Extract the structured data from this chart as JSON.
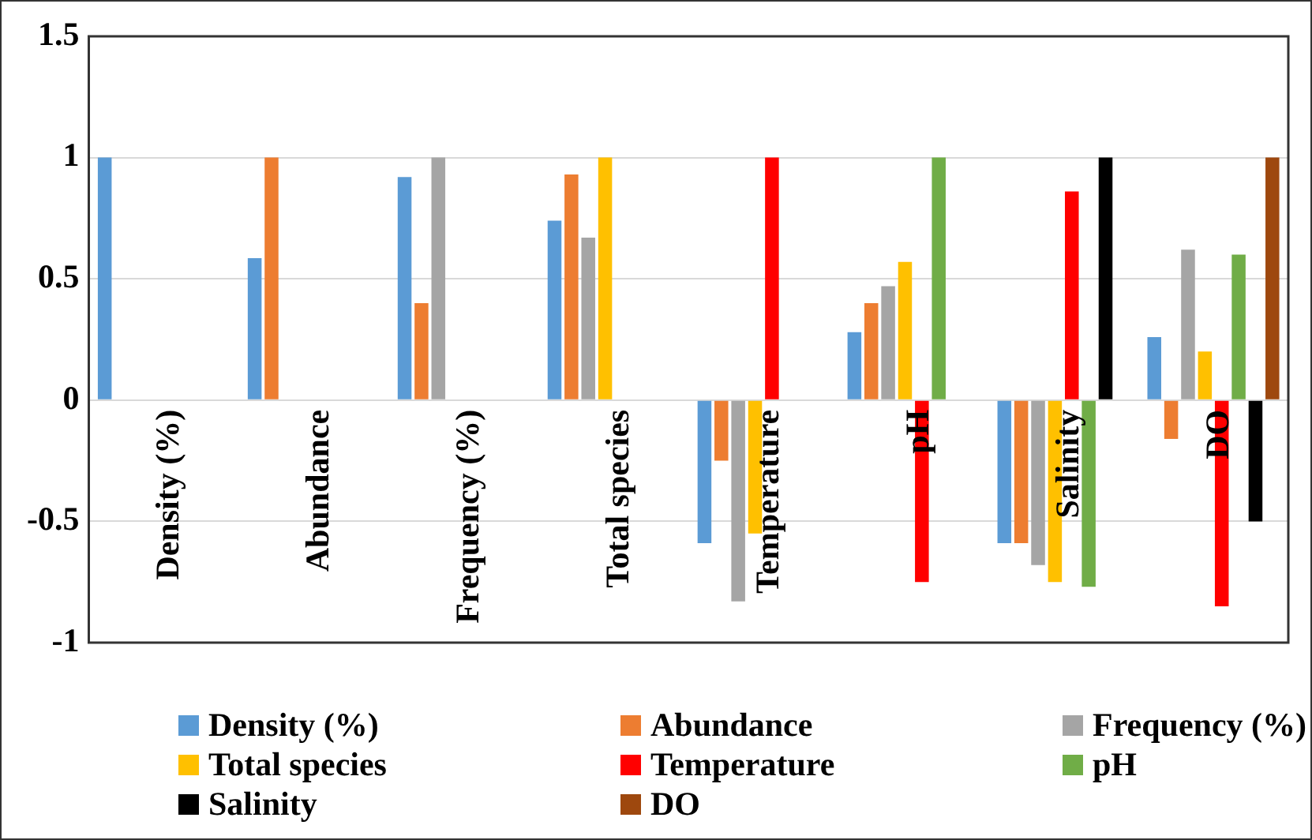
{
  "chart_data": {
    "type": "bar",
    "categories": [
      "Density (%)",
      "Abundance",
      "Frequency (%)",
      "Total species",
      "Temperature",
      "pH",
      "Salinity",
      "DO"
    ],
    "series": [
      {
        "name": "Density (%)",
        "color": "#5b9bd5",
        "values": [
          1,
          0.585,
          0.92,
          0.74,
          -0.59,
          0.28,
          -0.59,
          0.26
        ]
      },
      {
        "name": "Abundance",
        "color": "#ed7d31",
        "values": [
          null,
          1,
          0.4,
          0.93,
          -0.25,
          0.4,
          -0.59,
          -0.16
        ]
      },
      {
        "name": "Frequency (%)",
        "color": "#a5a5a5",
        "values": [
          null,
          null,
          1,
          0.67,
          -0.83,
          0.47,
          -0.68,
          0.62
        ]
      },
      {
        "name": "Total species",
        "color": "#ffc000",
        "values": [
          null,
          null,
          null,
          1,
          -0.55,
          0.57,
          -0.75,
          0.2
        ]
      },
      {
        "name": "Temperature",
        "color": "#ff0000",
        "values": [
          null,
          null,
          null,
          null,
          1,
          -0.75,
          0.86,
          -0.85
        ]
      },
      {
        "name": "pH",
        "color": "#70ad47",
        "values": [
          null,
          null,
          null,
          null,
          null,
          1,
          -0.77,
          0.6
        ]
      },
      {
        "name": "Salinity",
        "color": "#000000",
        "values": [
          null,
          null,
          null,
          null,
          null,
          null,
          1,
          -0.5
        ]
      },
      {
        "name": "DO",
        "color": "#9e480e",
        "values": [
          null,
          null,
          null,
          null,
          null,
          null,
          null,
          1
        ]
      }
    ],
    "ylim": [
      -1,
      1.5
    ],
    "yticks": [
      -1,
      -0.5,
      0,
      0.5,
      1,
      1.5
    ],
    "grid": "y",
    "legend": "bottom"
  }
}
